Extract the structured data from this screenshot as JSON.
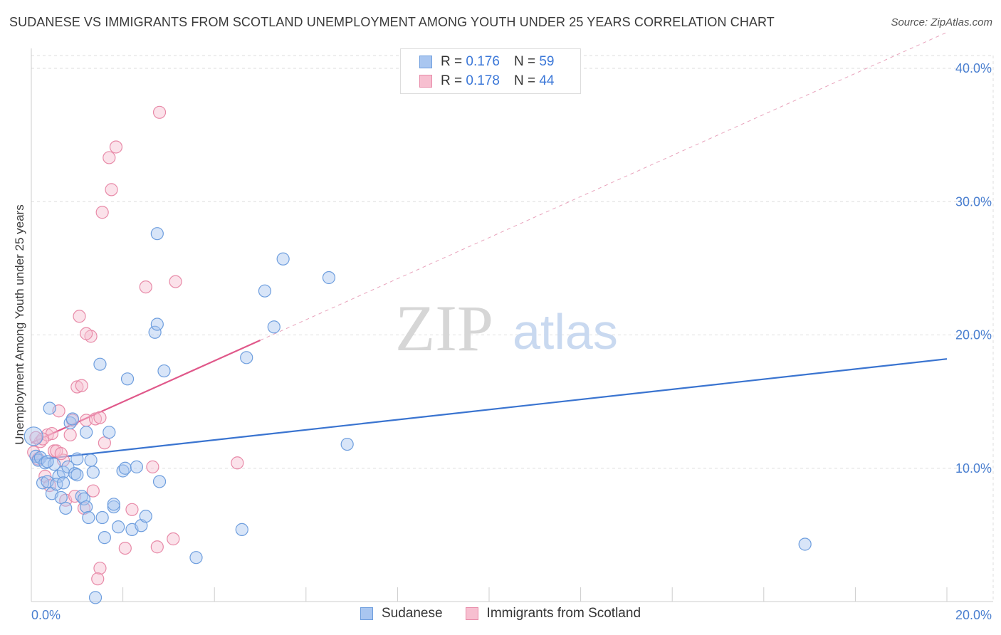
{
  "title": "SUDANESE VS IMMIGRANTS FROM SCOTLAND UNEMPLOYMENT AMONG YOUTH UNDER 25 YEARS CORRELATION CHART",
  "source": "Source: ZipAtlas.com",
  "watermark": {
    "zip": "ZIP",
    "atlas": "atlas"
  },
  "legend": {
    "rows": [
      {
        "r_label": "R =",
        "r_value": "0.176",
        "n_label": "N =",
        "n_value": "59"
      },
      {
        "r_label": "R =",
        "r_value": "0.178",
        "n_label": "N =",
        "n_value": "44"
      }
    ]
  },
  "colors": {
    "blue_fill": "#a9c6f0",
    "blue_stroke": "#6e9ede",
    "blue_line": "#3a74d0",
    "pink_fill": "#f7bfd0",
    "pink_stroke": "#e88aa8",
    "pink_line": "#e0588a",
    "grid": "#dddddd",
    "tick_text": "#4a7fd0"
  },
  "chart_data": {
    "type": "scatter",
    "title": "SUDANESE VS IMMIGRANTS FROM SCOTLAND UNEMPLOYMENT AMONG YOUTH UNDER 25 YEARS CORRELATION CHART",
    "xlabel": "",
    "ylabel": "Unemployment Among Youth under 25 years",
    "xlim": [
      0,
      20
    ],
    "ylim": [
      0,
      40
    ],
    "x_tick_labels": [
      "0.0%",
      "20.0%"
    ],
    "y_ticks": [
      10,
      20,
      30,
      40
    ],
    "y_tick_labels": [
      "10.0%",
      "20.0%",
      "30.0%",
      "40.0%"
    ],
    "grid": true,
    "legend_position": "top-center",
    "series": [
      {
        "name": "Sudanese",
        "r": 0.176,
        "n": 59,
        "trend": {
          "x": [
            0,
            20
          ],
          "y": [
            10.6,
            18.2
          ]
        },
        "points": [
          [
            0.05,
            12.4
          ],
          [
            0.1,
            10.9
          ],
          [
            0.15,
            10.6
          ],
          [
            0.2,
            10.8
          ],
          [
            0.25,
            8.9
          ],
          [
            0.3,
            10.4
          ],
          [
            0.35,
            9.0
          ],
          [
            0.4,
            14.5
          ],
          [
            0.45,
            8.1
          ],
          [
            0.5,
            10.3
          ],
          [
            0.6,
            9.4
          ],
          [
            0.65,
            7.8
          ],
          [
            0.7,
            9.7
          ],
          [
            0.75,
            7.0
          ],
          [
            0.8,
            10.1
          ],
          [
            0.85,
            13.4
          ],
          [
            0.9,
            13.7
          ],
          [
            0.95,
            9.6
          ],
          [
            1.0,
            10.7
          ],
          [
            1.1,
            7.9
          ],
          [
            1.15,
            7.7
          ],
          [
            1.2,
            7.1
          ],
          [
            1.25,
            6.3
          ],
          [
            1.3,
            10.6
          ],
          [
            1.35,
            9.7
          ],
          [
            1.5,
            17.8
          ],
          [
            1.55,
            6.3
          ],
          [
            1.7,
            12.7
          ],
          [
            1.8,
            7.1
          ],
          [
            1.9,
            5.6
          ],
          [
            2.0,
            9.8
          ],
          [
            2.05,
            10.0
          ],
          [
            2.1,
            16.7
          ],
          [
            2.2,
            5.4
          ],
          [
            2.3,
            10.1
          ],
          [
            2.4,
            5.7
          ],
          [
            2.5,
            6.4
          ],
          [
            2.7,
            20.2
          ],
          [
            2.75,
            20.8
          ],
          [
            2.9,
            17.3
          ],
          [
            3.6,
            3.3
          ],
          [
            4.6,
            5.4
          ],
          [
            4.7,
            18.3
          ],
          [
            5.1,
            23.3
          ],
          [
            5.3,
            20.6
          ],
          [
            5.5,
            25.7
          ],
          [
            6.5,
            24.3
          ],
          [
            6.9,
            11.8
          ],
          [
            16.9,
            4.3
          ],
          [
            2.8,
            9.0
          ],
          [
            0.55,
            8.8
          ],
          [
            1.6,
            4.8
          ],
          [
            1.4,
            0.3
          ],
          [
            2.75,
            27.6
          ],
          [
            1.2,
            12.7
          ],
          [
            0.35,
            10.5
          ],
          [
            0.7,
            8.9
          ],
          [
            1.0,
            9.5
          ],
          [
            1.8,
            7.3
          ]
        ]
      },
      {
        "name": "Immigrants from Scotland",
        "r": 0.178,
        "n": 44,
        "trend": {
          "x": [
            0,
            5.0
          ],
          "y": [
            11.9,
            19.6
          ]
        },
        "trend_extension": {
          "x": [
            5.0,
            20
          ],
          "y": [
            19.6,
            42.7
          ]
        },
        "points": [
          [
            0.05,
            11.2
          ],
          [
            0.15,
            10.7
          ],
          [
            0.2,
            12.0
          ],
          [
            0.3,
            9.4
          ],
          [
            0.35,
            12.5
          ],
          [
            0.45,
            12.6
          ],
          [
            0.5,
            11.3
          ],
          [
            0.55,
            11.3
          ],
          [
            0.6,
            14.3
          ],
          [
            0.7,
            10.6
          ],
          [
            0.75,
            7.6
          ],
          [
            0.85,
            12.5
          ],
          [
            0.9,
            13.6
          ],
          [
            0.95,
            7.9
          ],
          [
            1.0,
            16.1
          ],
          [
            1.05,
            21.4
          ],
          [
            1.1,
            16.2
          ],
          [
            1.15,
            7.0
          ],
          [
            1.2,
            13.6
          ],
          [
            1.3,
            19.9
          ],
          [
            1.35,
            8.3
          ],
          [
            1.4,
            13.7
          ],
          [
            1.5,
            13.8
          ],
          [
            1.6,
            11.9
          ],
          [
            1.7,
            33.3
          ],
          [
            1.75,
            30.9
          ],
          [
            1.85,
            34.1
          ],
          [
            2.05,
            4.0
          ],
          [
            2.2,
            6.9
          ],
          [
            2.5,
            23.6
          ],
          [
            2.65,
            10.1
          ],
          [
            2.75,
            4.1
          ],
          [
            2.8,
            36.7
          ],
          [
            3.1,
            4.7
          ],
          [
            3.15,
            24.0
          ],
          [
            4.5,
            10.4
          ],
          [
            1.5,
            2.5
          ],
          [
            1.45,
            1.7
          ],
          [
            1.55,
            29.2
          ],
          [
            0.25,
            12.2
          ],
          [
            0.1,
            12.3
          ],
          [
            0.65,
            11.1
          ],
          [
            1.2,
            20.1
          ],
          [
            0.4,
            8.7
          ]
        ]
      }
    ]
  },
  "bottom_legend": [
    "Sudanese",
    "Immigrants from Scotland"
  ]
}
